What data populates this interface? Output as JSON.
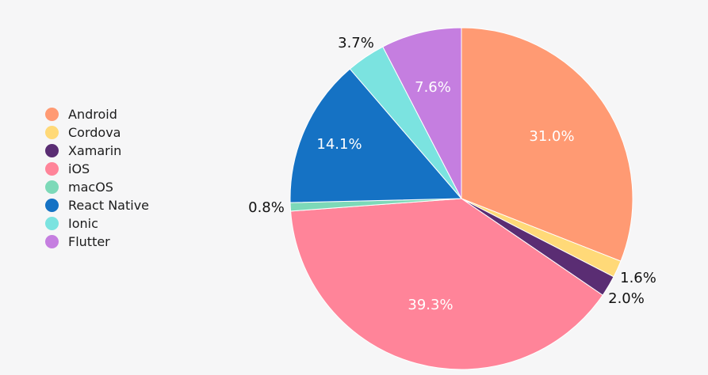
{
  "chart_data": {
    "type": "pie",
    "series": [
      {
        "name": "Android",
        "value": 31.0,
        "label": "31.0%",
        "color": "#ff9a73"
      },
      {
        "name": "Cordova",
        "value": 1.6,
        "label": "1.6%",
        "color": "#ffd978"
      },
      {
        "name": "Xamarin",
        "value": 2.0,
        "label": "2.0%",
        "color": "#5a2d73"
      },
      {
        "name": "iOS",
        "value": 39.3,
        "label": "39.3%",
        "color": "#ff8499"
      },
      {
        "name": "macOS",
        "value": 0.8,
        "label": "0.8%",
        "color": "#7dd9b8"
      },
      {
        "name": "React Native",
        "value": 14.1,
        "label": "14.1%",
        "color": "#1572c4"
      },
      {
        "name": "Ionic",
        "value": 3.7,
        "label": "3.7%",
        "color": "#7be3e0"
      },
      {
        "name": "Flutter",
        "value": 7.6,
        "label": "7.6%",
        "color": "#c57ee0"
      }
    ],
    "legend_position": "left"
  }
}
